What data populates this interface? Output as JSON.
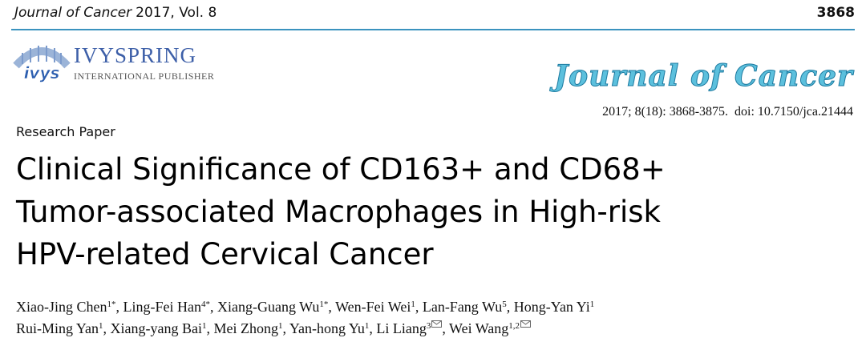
{
  "header": {
    "journal": "Journal of Cancer",
    "issue": "2017, Vol. 8",
    "page": "3868"
  },
  "publisher": {
    "mark": "ivys",
    "name": "IVYSPRING",
    "subtitle": "INTERNATIONAL PUBLISHER"
  },
  "journal_logo": "Journal of Cancer",
  "citation": "2017; 8(18): 3868-3875.  doi: 10.7150/jca.21444",
  "article_type": "Research Paper",
  "title": [
    "Clinical Significance of CD163+ and CD68+",
    "Tumor-associated Macrophages in High-risk",
    "HPV-related Cervical Cancer"
  ],
  "authors": [
    [
      {
        "name": "Xiao-Jing Chen",
        "affil": "1*"
      },
      {
        "name": "Ling-Fei Han",
        "affil": "4*"
      },
      {
        "name": "Xiang-Guang Wu",
        "affil": "1*"
      },
      {
        "name": "Wen-Fei Wei",
        "affil": "1"
      },
      {
        "name": "Lan-Fang Wu",
        "affil": "5"
      },
      {
        "name": "Hong-Yan Yi",
        "affil": "1"
      }
    ],
    [
      {
        "name": "Rui-Ming Yan",
        "affil": "1"
      },
      {
        "name": "Xiang-yang Bai",
        "affil": "1"
      },
      {
        "name": "Mei Zhong",
        "affil": "1"
      },
      {
        "name": "Yan-hong Yu",
        "affil": "1"
      },
      {
        "name": "Li Liang",
        "affil": "3",
        "corresponding": true
      },
      {
        "name": "Wei Wang",
        "affil": "1,2",
        "corresponding": true
      }
    ]
  ]
}
